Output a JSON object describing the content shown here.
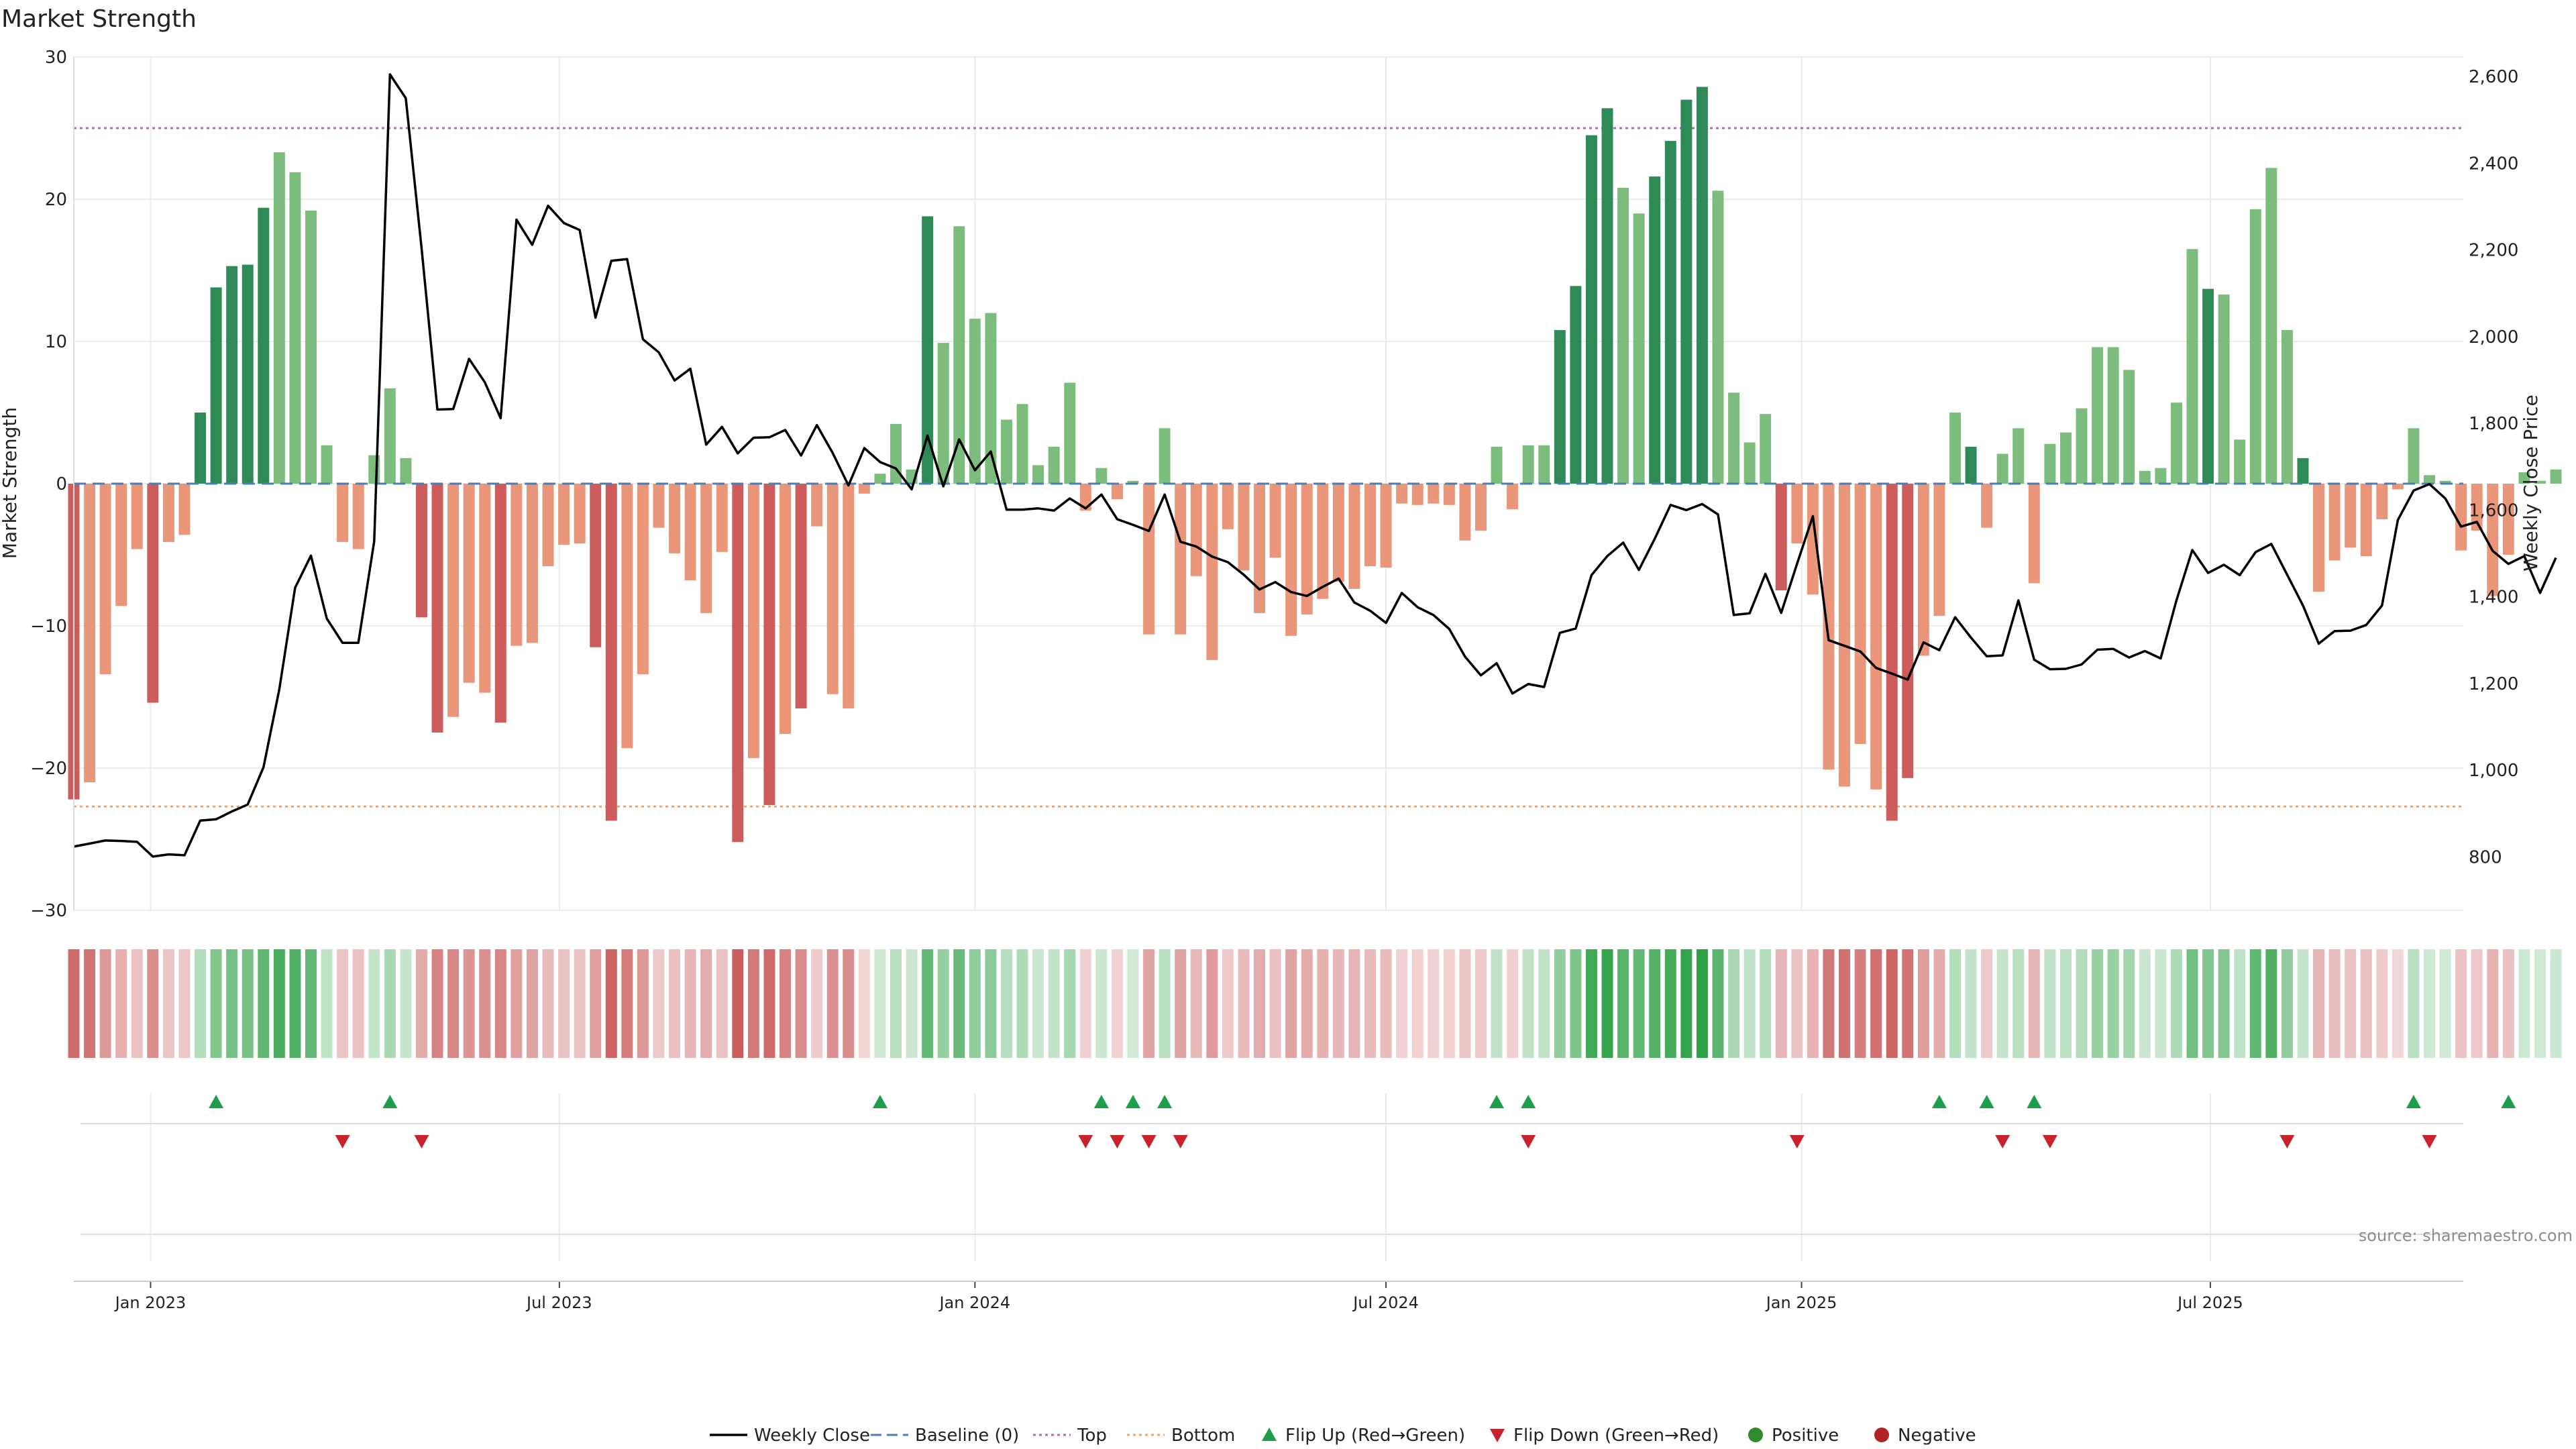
{
  "colors": {
    "bar_strong_green": "#2e8b57",
    "bar_light_green": "#7cbd7e",
    "bar_strong_red": "#cd5c5c",
    "bar_light_red": "#e9967a",
    "weekly_close": "#000000",
    "baseline": "#4a7fb5",
    "top_line": "#b06ab3",
    "bottom_line": "#f4a460",
    "flip_up": "#1e9e4a",
    "flip_down": "#c8232c",
    "positive": "#2e8b2e",
    "negative": "#b22222",
    "grid": "#ebebeb",
    "source_text": "#8c8c8c"
  },
  "chart_data": {
    "type": "bar",
    "title": "Market Strength",
    "ylabel_left": "Market Strength",
    "ylabel_right": "Weekly Close Price",
    "source": "source: sharemaestro.com",
    "x_range": [
      "2022-11-28",
      "2025-10-21"
    ],
    "x_ticks": [
      {
        "date": "2023-01-01",
        "label": "Jan 2023"
      },
      {
        "date": "2023-07-01",
        "label": "Jul 2023"
      },
      {
        "date": "2024-01-01",
        "label": "Jan 2024"
      },
      {
        "date": "2024-07-01",
        "label": "Jul 2024"
      },
      {
        "date": "2025-01-01",
        "label": "Jan 2025"
      },
      {
        "date": "2025-07-01",
        "label": "Jul 2025"
      }
    ],
    "y_left": {
      "min": -30,
      "max": 30,
      "ticks": [
        30,
        20,
        10,
        0,
        -10,
        -20,
        -30
      ],
      "tick_labels": [
        "30",
        "20",
        "10",
        "0",
        "−10",
        "−20",
        "−30"
      ]
    },
    "y_right": {
      "min": 677,
      "max": 2645,
      "ticks": [
        800,
        1000,
        1200,
        1400,
        1600,
        1800,
        2000,
        2200,
        2400,
        2600
      ],
      "tick_labels": [
        "800",
        "1,000",
        "1,200",
        "1,400",
        "1,600",
        "1,800",
        "2,000",
        "2,200",
        "2,400",
        "2,600"
      ]
    },
    "top_threshold": 25,
    "bottom_threshold": -22.7,
    "baseline": 0,
    "start_week": "2022-11-28",
    "strength": [
      -22.2,
      -21,
      -13.4,
      -8.6,
      -4.6,
      -15.4,
      -4.1,
      -3.6,
      5,
      13.8,
      15.3,
      15.4,
      19.4,
      23.3,
      21.9,
      19.2,
      2.7,
      -4.1,
      -4.6,
      2,
      6.7,
      1.8,
      -9.4,
      -17.5,
      -16.4,
      -14,
      -14.7,
      -16.8,
      -11.4,
      -11.2,
      -5.8,
      -4.3,
      -4.2,
      -11.5,
      -23.7,
      -18.6,
      -13.4,
      -3.1,
      -4.9,
      -6.8,
      -9.1,
      -4.8,
      -25.2,
      -19.3,
      -22.6,
      -17.6,
      -15.8,
      -3,
      -14.8,
      -15.8,
      -0.7,
      0.7,
      4.2,
      1,
      18.8,
      9.9,
      18.1,
      11.6,
      12,
      4.5,
      5.6,
      1.3,
      2.6,
      7.1,
      -1.9,
      1.1,
      -1.1,
      0.2,
      -10.6,
      3.9,
      -10.6,
      -6.5,
      -12.4,
      -3.2,
      -6.1,
      -9.1,
      -5.2,
      -10.7,
      -9.2,
      -8.1,
      -6.9,
      -7.4,
      -5.8,
      -5.9,
      -1.4,
      -1.5,
      -1.4,
      -1.5,
      -4,
      -3.3,
      2.6,
      -1.8,
      2.7,
      2.7,
      10.8,
      13.9,
      24.5,
      26.4,
      20.8,
      19,
      21.6,
      24.1,
      27,
      27.9,
      20.6,
      6.4,
      2.9,
      4.9,
      -7.5,
      -4.2,
      -7.8,
      -20.1,
      -21.3,
      -18.3,
      -21.5,
      -23.7,
      -20.7,
      -12.1,
      -9.3,
      5,
      2.6,
      -3.1,
      2.1,
      3.9,
      -7,
      2.8,
      3.6,
      5.3,
      9.6,
      9.6,
      8,
      0.9,
      1.1,
      5.7,
      16.5,
      13.7,
      13.3,
      3.1,
      19.3,
      22.2,
      10.8,
      1.8,
      -7.6,
      -5.4,
      -4.5,
      -5.1,
      -2.5,
      -0.4,
      3.9,
      0.6,
      0.2,
      -4.7,
      -3.3,
      -7.9,
      -5,
      0.8,
      0.2,
      1
    ],
    "weekly_close": [
      824,
      831,
      838,
      837,
      835,
      801,
      806,
      804,
      884,
      887,
      905,
      921,
      1007,
      1187,
      1421,
      1495,
      1350,
      1294,
      1294,
      1528,
      2605,
      2550,
      2203,
      1832,
      1833,
      1949,
      1895,
      1812,
      2270,
      2212,
      2302,
      2262,
      2246,
      2044,
      2175,
      2179,
      1994,
      1964,
      1899,
      1926,
      1751,
      1792,
      1731,
      1767,
      1768,
      1785,
      1726,
      1796,
      1732,
      1657,
      1743,
      1711,
      1696,
      1648,
      1772,
      1655,
      1763,
      1692,
      1735,
      1601,
      1601,
      1604,
      1599,
      1627,
      1604,
      1636,
      1579,
      1566,
      1552,
      1636,
      1527,
      1516,
      1493,
      1480,
      1451,
      1417,
      1434,
      1411,
      1402,
      1423,
      1442,
      1387,
      1368,
      1340,
      1409,
      1376,
      1358,
      1326,
      1262,
      1219,
      1247,
      1177,
      1199,
      1192,
      1317,
      1327,
      1450,
      1494,
      1525,
      1462,
      1534,
      1612,
      1600,
      1614,
      1590,
      1358,
      1362,
      1453,
      1363,
      1476,
      1586,
      1300,
      1287,
      1274,
      1236,
      1223,
      1209,
      1295,
      1277,
      1353,
      1306,
      1263,
      1265,
      1392,
      1255,
      1233,
      1234,
      1244,
      1278,
      1280,
      1260,
      1275,
      1258,
      1392,
      1508,
      1455,
      1474,
      1450,
      1503,
      1522,
      1451,
      1380,
      1292,
      1321,
      1322,
      1335,
      1380,
      1577,
      1645,
      1660,
      1627,
      1562,
      1573,
      1506,
      1476,
      1494,
      1409,
      1490
    ],
    "light_weeks": [
      1,
      2,
      3,
      4,
      6,
      7,
      13,
      14,
      15,
      16,
      17,
      18,
      19,
      20,
      21,
      24,
      25,
      26,
      28,
      29,
      30,
      31,
      32,
      35,
      36,
      37,
      38,
      39,
      40,
      41,
      43,
      45,
      47,
      48,
      49,
      50,
      51,
      52,
      53,
      55,
      56,
      57,
      58,
      59,
      60,
      61,
      62,
      63,
      64,
      65,
      66,
      67,
      68,
      69,
      70,
      71,
      72,
      73,
      74,
      75,
      76,
      77,
      78,
      79,
      80,
      81,
      82,
      83,
      84,
      85,
      86,
      87,
      88,
      89,
      90,
      91,
      92,
      93,
      98,
      99,
      104,
      105,
      106,
      107,
      109,
      110,
      111,
      112,
      113,
      114,
      117,
      118,
      119,
      121,
      122,
      123,
      124,
      125,
      126,
      127,
      128,
      129,
      130,
      131,
      132,
      133,
      134,
      136,
      137,
      138,
      139,
      140,
      142,
      143,
      144,
      145,
      146,
      147,
      148,
      149,
      150,
      151,
      152,
      153,
      154,
      155,
      156,
      157
    ],
    "flip_up_weeks": [
      9,
      20,
      51,
      65,
      67,
      69,
      90,
      92,
      118,
      121,
      124,
      148,
      154
    ],
    "flip_down_weeks": [
      17,
      22,
      64,
      66,
      68,
      70,
      92,
      109,
      122,
      125,
      140,
      149
    ],
    "heat_strip": "strength intensity per week (green = positive, red = negative)"
  },
  "legend": [
    {
      "label": "Weekly Close",
      "type": "line",
      "color": "#000000"
    },
    {
      "label": "Baseline (0)",
      "type": "dash",
      "color": "#4a7fb5"
    },
    {
      "label": "Top",
      "type": "dot",
      "color": "#b06ab3"
    },
    {
      "label": "Bottom",
      "type": "dot",
      "color": "#f4a460"
    },
    {
      "label": "Flip Up (Red→Green)",
      "type": "tri-up",
      "color": "#1e9e4a"
    },
    {
      "label": "Flip Down (Green→Red)",
      "type": "tri-down",
      "color": "#c8232c"
    },
    {
      "label": "Positive",
      "type": "circle",
      "color": "#2e8b2e"
    },
    {
      "label": "Negative",
      "type": "circle",
      "color": "#b22222"
    }
  ]
}
